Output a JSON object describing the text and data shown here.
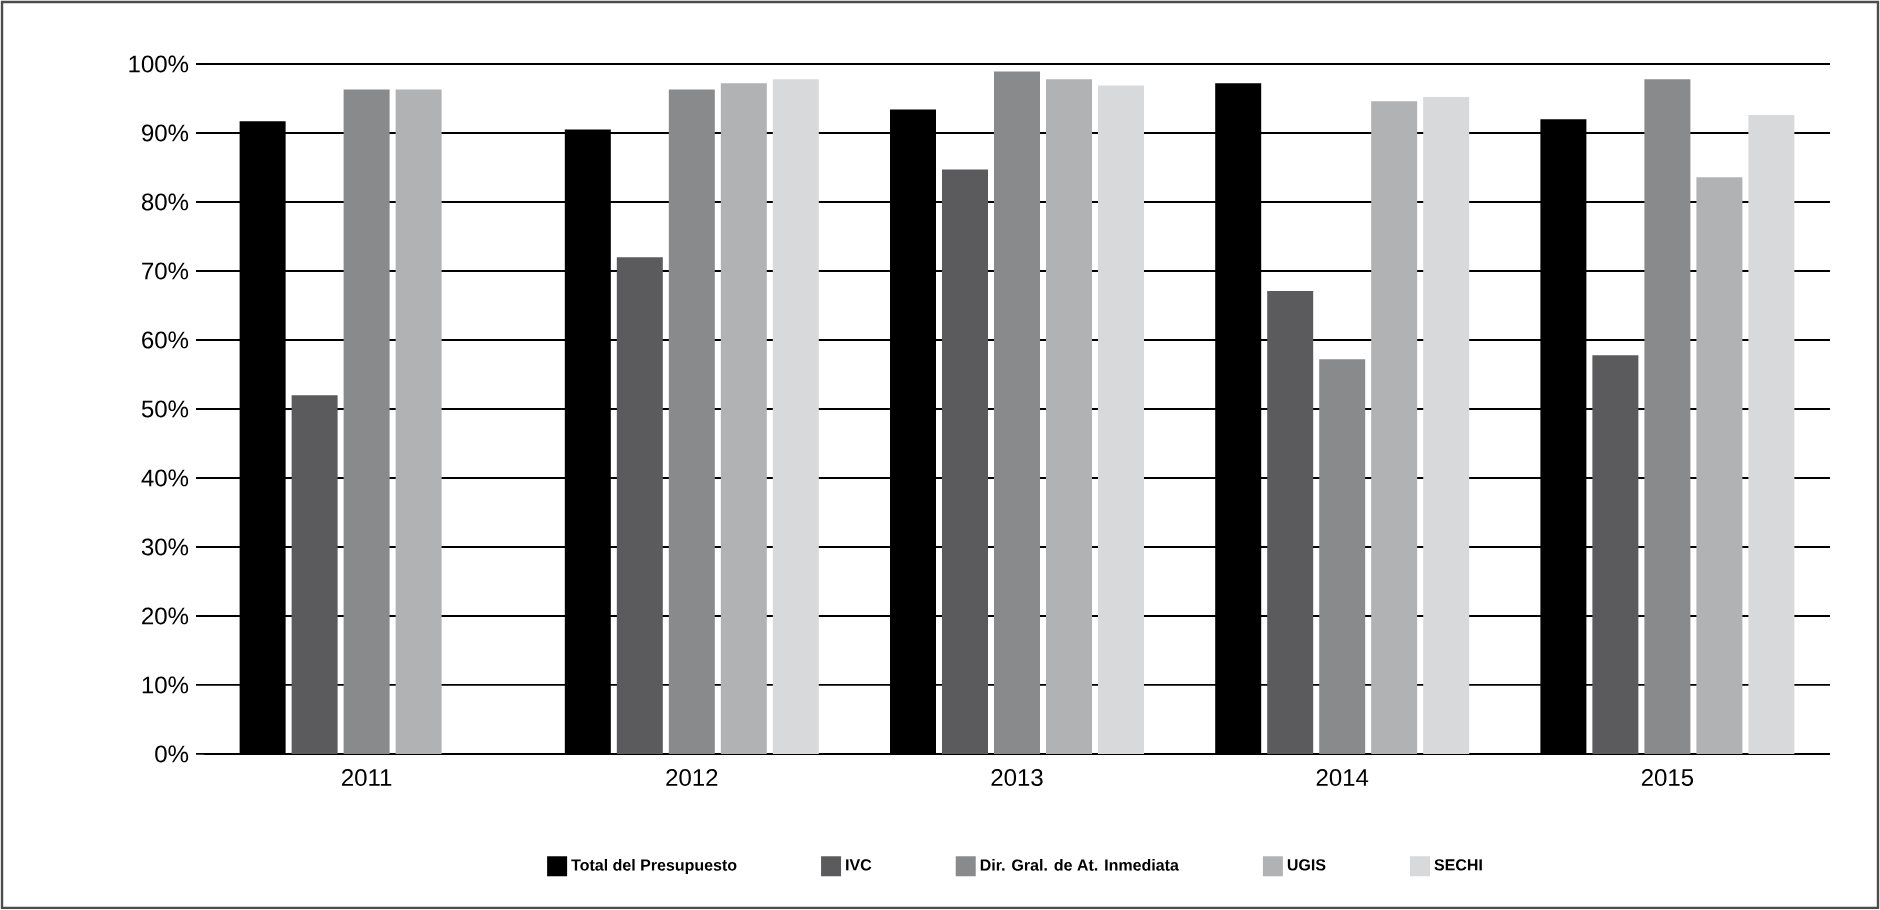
{
  "chart_data": {
    "type": "bar",
    "categories": [
      "2011",
      "2012",
      "2013",
      "2014",
      "2015"
    ],
    "series": [
      {
        "name": "Total del Presupuesto",
        "color": "#000000",
        "values": [
          91.7,
          90.5,
          93.4,
          97.2,
          92.0
        ]
      },
      {
        "name": "IVC",
        "color": "#5b5b5d",
        "values": [
          52.0,
          72.0,
          84.7,
          67.1,
          57.8
        ]
      },
      {
        "name": "Dir. Gral. de At. Inmediata",
        "color": "#898a8c",
        "values": [
          96.3,
          96.3,
          98.9,
          57.2,
          97.8
        ]
      },
      {
        "name": "UGIS",
        "color": "#b1b2b4",
        "values": [
          96.3,
          97.2,
          97.8,
          94.6,
          83.6
        ]
      },
      {
        "name": "SECHI",
        "color": "#d8d9da",
        "values": [
          null,
          97.8,
          96.9,
          95.2,
          92.6
        ]
      }
    ],
    "ylim": [
      0,
      100
    ],
    "yticks": [
      {
        "value": 0,
        "label": "0%"
      },
      {
        "value": 10,
        "label": "10%"
      },
      {
        "value": 20,
        "label": "20%"
      },
      {
        "value": 30,
        "label": "30%"
      },
      {
        "value": 40,
        "label": "40%"
      },
      {
        "value": 50,
        "label": "50%"
      },
      {
        "value": 60,
        "label": "60%"
      },
      {
        "value": 70,
        "label": "70%"
      },
      {
        "value": 80,
        "label": "80%"
      },
      {
        "value": 90,
        "label": "90%"
      },
      {
        "value": 100,
        "label": "100%"
      }
    ],
    "grid": "y",
    "legend": "bottom"
  }
}
